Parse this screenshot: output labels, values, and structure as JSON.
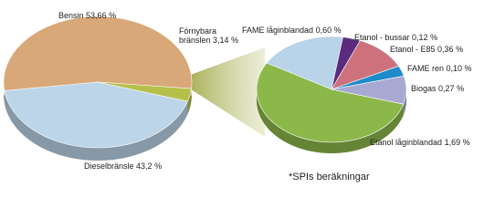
{
  "chart_data": [
    {
      "type": "pie",
      "categories": [
        "Bensin",
        "Dieselbränsle",
        "Förnybara bränslen"
      ],
      "values": [
        53.66,
        43.2,
        3.14
      ],
      "value_labels": [
        "53,66 %",
        "43,2 %",
        "3,14 %"
      ],
      "colors": [
        "#d8a878",
        "#bcd5e8",
        "#b4c04a"
      ]
    },
    {
      "type": "pie",
      "categories": [
        "FAME låginblandad",
        "Etanol - bussar",
        "Etanol - E85",
        "FAME ren",
        "Biogas",
        "Etanol låginblandad"
      ],
      "values": [
        0.6,
        0.12,
        0.36,
        0.1,
        0.27,
        1.69
      ],
      "value_labels": [
        "0,60 %",
        "0,12 %",
        "0,36 %",
        "0,10 %",
        "0,27 %",
        "1,69 %"
      ],
      "colors": [
        "#b9d3e8",
        "#5b2c7e",
        "#cd727c",
        "#1e8bcb",
        "#a8a9d2",
        "#8cb84a"
      ],
      "annotation": "*SPIs beräkningar"
    }
  ]
}
